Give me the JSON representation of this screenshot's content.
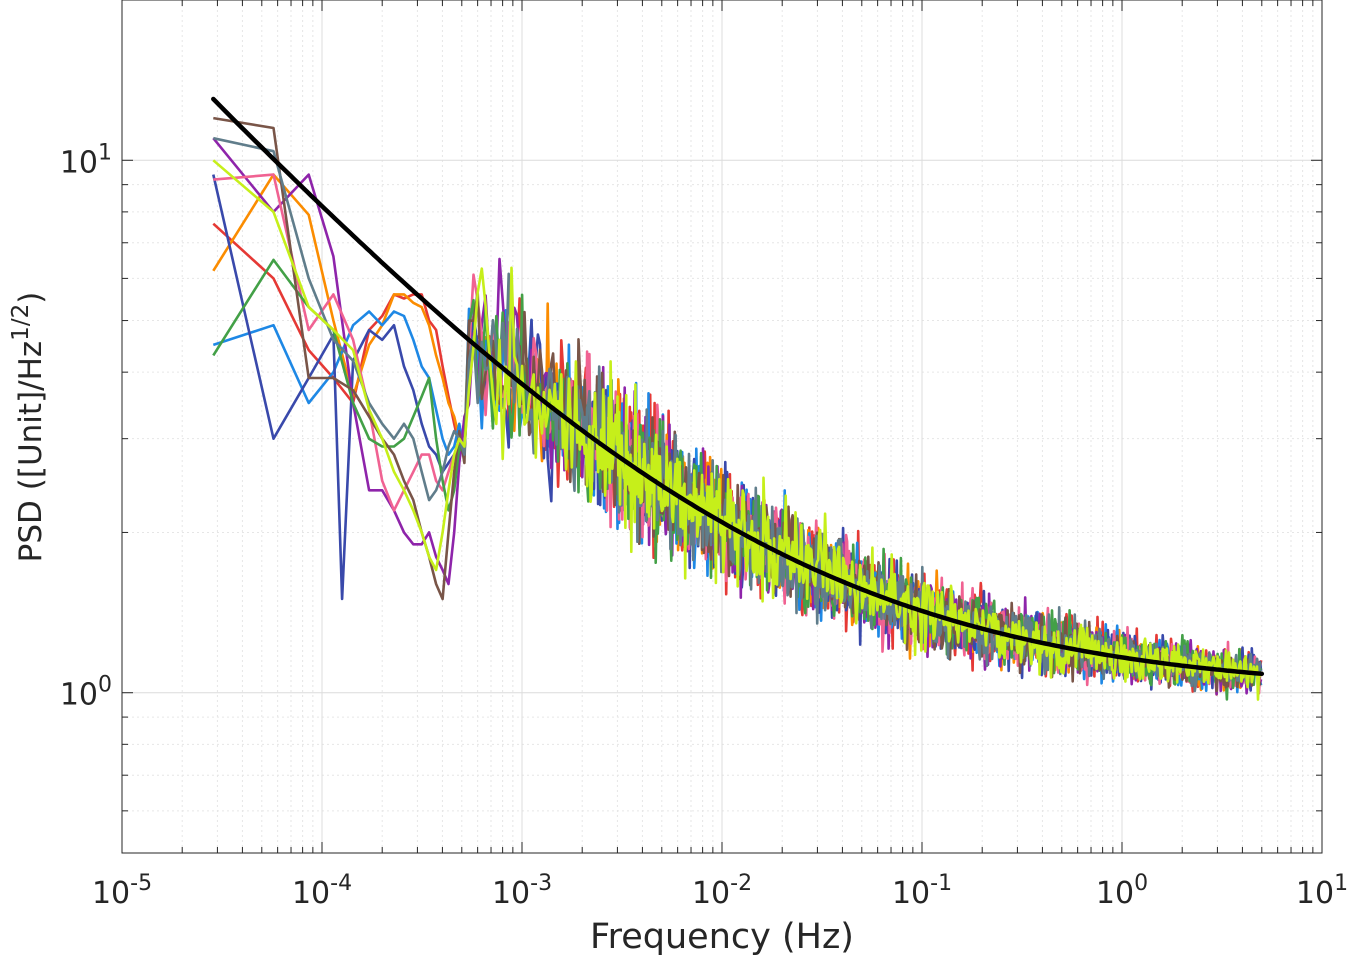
{
  "chart_data": {
    "type": "line",
    "title": "",
    "xlabel": "Frequency (Hz)",
    "ylabel": {
      "base": "PSD ([Unit]/Hz",
      "superscript": "1/2",
      "close": ")"
    },
    "xscale": "log",
    "yscale": "log",
    "xlim": [
      1e-05,
      10
    ],
    "ylim": [
      0.5,
      20
    ],
    "grid": true,
    "minor_grid": true,
    "legend": "none",
    "x_ticks": [
      {
        "value": 1e-05,
        "base": "10",
        "exp": "-5"
      },
      {
        "value": 0.0001,
        "base": "10",
        "exp": "-4"
      },
      {
        "value": 0.001,
        "base": "10",
        "exp": "-3"
      },
      {
        "value": 0.01,
        "base": "10",
        "exp": "-2"
      },
      {
        "value": 0.1,
        "base": "10",
        "exp": "-1"
      },
      {
        "value": 1,
        "base": "10",
        "exp": "0"
      },
      {
        "value": 10,
        "base": "10",
        "exp": "1"
      }
    ],
    "y_ticks": [
      {
        "value": 1,
        "base": "10",
        "exp": "0"
      },
      {
        "value": 10,
        "base": "10",
        "exp": "1"
      }
    ],
    "series_style": {
      "line_width": "thin",
      "fit_line_width": "thick"
    },
    "noise_series": [
      {
        "color": "#e53935",
        "low_freq": [
          [
            2.86e-05,
            7.6
          ],
          [
            5.72e-05,
            6.0
          ],
          [
            8.58e-05,
            4.4
          ],
          [
            0.000114,
            3.9
          ],
          [
            0.000143,
            3.5
          ],
          [
            0.000172,
            4.8
          ],
          [
            0.0002,
            5.1
          ],
          [
            0.000229,
            5.6
          ],
          [
            0.000257,
            5.5
          ],
          [
            0.000286,
            5.6
          ],
          [
            0.000315,
            5.6
          ],
          [
            0.000343,
            5.0
          ],
          [
            0.000372,
            4.8
          ],
          [
            0.000401,
            4.1
          ],
          [
            0.000429,
            3.6
          ],
          [
            0.000458,
            3.2
          ],
          [
            0.000486,
            2.9
          ],
          [
            0.000515,
            2.8
          ]
        ],
        "seed": 11
      },
      {
        "color": "#fb8c00",
        "low_freq": [
          [
            2.86e-05,
            6.2
          ],
          [
            5.72e-05,
            9.4
          ],
          [
            8.58e-05,
            7.9
          ],
          [
            0.000114,
            5.0
          ],
          [
            0.000143,
            3.6
          ],
          [
            0.000172,
            4.5
          ],
          [
            0.0002,
            4.9
          ],
          [
            0.000229,
            5.6
          ],
          [
            0.000257,
            5.6
          ],
          [
            0.000286,
            5.4
          ],
          [
            0.000315,
            5.3
          ],
          [
            0.000343,
            4.9
          ],
          [
            0.000372,
            4.3
          ],
          [
            0.000401,
            3.9
          ],
          [
            0.000429,
            3.5
          ],
          [
            0.000458,
            3.3
          ],
          [
            0.000486,
            3.0
          ],
          [
            0.000515,
            2.9
          ]
        ],
        "seed": 12
      },
      {
        "color": "#1e88e5",
        "low_freq": [
          [
            2.86e-05,
            4.5
          ],
          [
            5.72e-05,
            4.9
          ],
          [
            8.58e-05,
            3.5
          ],
          [
            0.000114,
            4.0
          ],
          [
            0.000143,
            4.9
          ],
          [
            0.000172,
            5.2
          ],
          [
            0.0002,
            4.9
          ],
          [
            0.000229,
            5.2
          ],
          [
            0.000257,
            5.1
          ],
          [
            0.000286,
            4.6
          ],
          [
            0.000315,
            4.1
          ],
          [
            0.000343,
            3.9
          ],
          [
            0.000372,
            3.4
          ],
          [
            0.000401,
            3.0
          ],
          [
            0.000429,
            2.8
          ],
          [
            0.000458,
            2.9
          ],
          [
            0.000486,
            3.2
          ],
          [
            0.000515,
            2.8
          ]
        ],
        "seed": 13
      },
      {
        "color": "#3949ab",
        "low_freq": [
          [
            2.86e-05,
            9.4
          ],
          [
            5.72e-05,
            3.0
          ],
          [
            8.58e-05,
            3.9
          ],
          [
            0.000114,
            4.7
          ],
          [
            0.000126,
            1.5
          ],
          [
            0.000143,
            4.2
          ],
          [
            0.000172,
            4.8
          ],
          [
            0.0002,
            4.6
          ],
          [
            0.000229,
            4.9
          ],
          [
            0.000257,
            4.1
          ],
          [
            0.000286,
            3.7
          ],
          [
            0.000315,
            3.2
          ],
          [
            0.000343,
            2.9
          ],
          [
            0.000372,
            2.8
          ],
          [
            0.000401,
            2.6
          ],
          [
            0.000429,
            2.7
          ],
          [
            0.000458,
            2.8
          ],
          [
            0.000486,
            2.9
          ],
          [
            0.000515,
            2.8
          ]
        ],
        "seed": 14
      },
      {
        "color": "#8e24aa",
        "low_freq": [
          [
            2.86e-05,
            11.0
          ],
          [
            5.72e-05,
            8.0
          ],
          [
            8.58e-05,
            9.4
          ],
          [
            0.000114,
            6.6
          ],
          [
            0.000143,
            3.5
          ],
          [
            0.000172,
            2.4
          ],
          [
            0.0002,
            2.4
          ],
          [
            0.000229,
            2.2
          ],
          [
            0.000257,
            2.0
          ],
          [
            0.000286,
            1.9
          ],
          [
            0.000315,
            1.9
          ],
          [
            0.000343,
            2.0
          ],
          [
            0.000372,
            1.8
          ],
          [
            0.000401,
            1.7
          ],
          [
            0.000429,
            1.6
          ],
          [
            0.000458,
            2.0
          ],
          [
            0.000486,
            2.7
          ],
          [
            0.000515,
            3.3
          ]
        ],
        "seed": 15
      },
      {
        "color": "#f06292",
        "low_freq": [
          [
            2.86e-05,
            9.2
          ],
          [
            5.72e-05,
            9.4
          ],
          [
            8.58e-05,
            4.8
          ],
          [
            0.000114,
            5.6
          ],
          [
            0.000143,
            4.6
          ],
          [
            0.000172,
            3.4
          ],
          [
            0.0002,
            2.5
          ],
          [
            0.000229,
            2.2
          ],
          [
            0.000257,
            2.4
          ],
          [
            0.000286,
            2.6
          ],
          [
            0.000315,
            2.8
          ],
          [
            0.000343,
            2.8
          ],
          [
            0.000372,
            2.5
          ],
          [
            0.000401,
            2.4
          ],
          [
            0.000429,
            2.6
          ],
          [
            0.000458,
            2.8
          ],
          [
            0.000486,
            3.0
          ],
          [
            0.000515,
            2.9
          ]
        ],
        "seed": 16
      },
      {
        "color": "#43a047",
        "low_freq": [
          [
            2.86e-05,
            4.3
          ],
          [
            5.72e-05,
            6.5
          ],
          [
            8.58e-05,
            5.3
          ],
          [
            0.000114,
            4.8
          ],
          [
            0.000143,
            3.5
          ],
          [
            0.000172,
            3.0
          ],
          [
            0.0002,
            2.9
          ],
          [
            0.000229,
            2.9
          ],
          [
            0.000257,
            3.0
          ],
          [
            0.000286,
            3.3
          ],
          [
            0.000315,
            3.6
          ],
          [
            0.000343,
            3.9
          ],
          [
            0.000372,
            3.0
          ],
          [
            0.000401,
            2.5
          ],
          [
            0.000429,
            2.2
          ],
          [
            0.000458,
            2.4
          ],
          [
            0.000486,
            2.9
          ],
          [
            0.000515,
            2.8
          ]
        ],
        "seed": 17
      },
      {
        "color": "#795548",
        "low_freq": [
          [
            2.86e-05,
            12.0
          ],
          [
            5.72e-05,
            11.5
          ],
          [
            8.58e-05,
            3.9
          ],
          [
            0.000114,
            3.9
          ],
          [
            0.000143,
            3.7
          ],
          [
            0.000172,
            3.3
          ],
          [
            0.0002,
            3.0
          ],
          [
            0.000229,
            2.8
          ],
          [
            0.000257,
            2.5
          ],
          [
            0.000286,
            2.3
          ],
          [
            0.000315,
            2.0
          ],
          [
            0.000343,
            1.8
          ],
          [
            0.000372,
            1.6
          ],
          [
            0.000401,
            1.5
          ],
          [
            0.000429,
            2.0
          ],
          [
            0.000458,
            2.6
          ],
          [
            0.000486,
            3.1
          ],
          [
            0.000515,
            2.7
          ]
        ],
        "seed": 18
      },
      {
        "color": "#607d8b",
        "low_freq": [
          [
            2.86e-05,
            11.0
          ],
          [
            5.72e-05,
            10.4
          ],
          [
            8.58e-05,
            6.0
          ],
          [
            0.000114,
            4.6
          ],
          [
            0.000143,
            4.2
          ],
          [
            0.000172,
            3.5
          ],
          [
            0.0002,
            3.2
          ],
          [
            0.000229,
            3.0
          ],
          [
            0.000257,
            3.2
          ],
          [
            0.000286,
            3.0
          ],
          [
            0.000315,
            2.6
          ],
          [
            0.000343,
            2.3
          ],
          [
            0.000372,
            2.4
          ],
          [
            0.000401,
            2.6
          ],
          [
            0.000429,
            2.9
          ],
          [
            0.000458,
            3.1
          ],
          [
            0.000486,
            3.0
          ],
          [
            0.000515,
            2.8
          ]
        ],
        "seed": 19
      },
      {
        "color": "#c6ef1a",
        "low_freq": [
          [
            2.86e-05,
            10.0
          ],
          [
            5.72e-05,
            8.0
          ],
          [
            8.58e-05,
            5.3
          ],
          [
            0.000114,
            4.8
          ],
          [
            0.000143,
            4.4
          ],
          [
            0.000172,
            3.4
          ],
          [
            0.0002,
            3.0
          ],
          [
            0.000229,
            2.6
          ],
          [
            0.000257,
            2.4
          ],
          [
            0.000286,
            2.2
          ],
          [
            0.000315,
            2.0
          ],
          [
            0.000343,
            1.8
          ],
          [
            0.000372,
            1.7
          ],
          [
            0.000401,
            2.0
          ],
          [
            0.000429,
            2.4
          ],
          [
            0.000458,
            2.8
          ],
          [
            0.000486,
            3.0
          ],
          [
            0.000515,
            2.9
          ]
        ],
        "seed": 20
      }
    ],
    "fit_curve": {
      "color": "#000000",
      "model": "1 + 0.165 * f^-0.41",
      "x_range": [
        2.86e-05,
        5
      ]
    }
  }
}
